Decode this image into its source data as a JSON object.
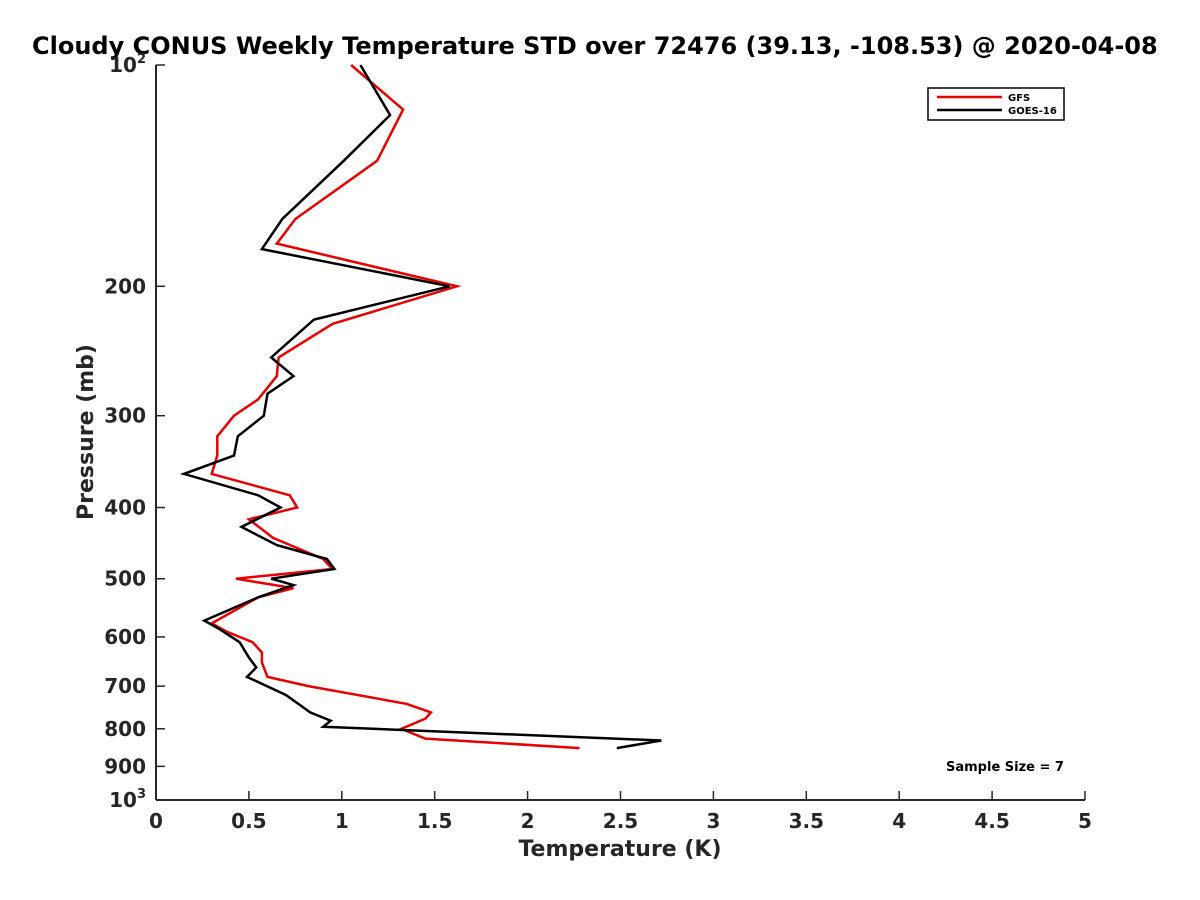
{
  "chart_data": {
    "type": "line",
    "title": "Cloudy CONUS Weekly Temperature STD over 72476 (39.13, -108.53) @ 2020-04-08",
    "xlabel": "Temperature (K)",
    "ylabel": "Pressure (mb)",
    "xlim": [
      0,
      5
    ],
    "ylim": [
      100,
      1000
    ],
    "yscale": "log",
    "y_reversed": true,
    "x_ticks": [
      "0",
      "0.5",
      "1",
      "1.5",
      "2",
      "2.5",
      "3",
      "3.5",
      "4",
      "4.5",
      "5"
    ],
    "y_ticks": [
      {
        "value": 100,
        "base": "10",
        "exp": "2"
      },
      {
        "value": 200,
        "label": "200"
      },
      {
        "value": 300,
        "label": "300"
      },
      {
        "value": 400,
        "label": "400"
      },
      {
        "value": 500,
        "label": "500"
      },
      {
        "value": 600,
        "label": "600"
      },
      {
        "value": 700,
        "label": "700"
      },
      {
        "value": 800,
        "label": "800"
      },
      {
        "value": 900,
        "label": "900"
      },
      {
        "value": 1000,
        "base": "10",
        "exp": "3"
      }
    ],
    "grid": false,
    "legend_position": "top-right",
    "annotation": "Sample Size = 7",
    "series": [
      {
        "name": "GFS",
        "color": "#e60000",
        "points": [
          {
            "x": 1.05,
            "y": 100
          },
          {
            "x": 1.33,
            "y": 115
          },
          {
            "x": 1.19,
            "y": 135
          },
          {
            "x": 0.75,
            "y": 162
          },
          {
            "x": 0.65,
            "y": 175
          },
          {
            "x": 1.62,
            "y": 200
          },
          {
            "x": 0.95,
            "y": 225
          },
          {
            "x": 0.66,
            "y": 250
          },
          {
            "x": 0.65,
            "y": 265
          },
          {
            "x": 0.55,
            "y": 285
          },
          {
            "x": 0.42,
            "y": 300
          },
          {
            "x": 0.33,
            "y": 320
          },
          {
            "x": 0.33,
            "y": 340
          },
          {
            "x": 0.3,
            "y": 360
          },
          {
            "x": 0.72,
            "y": 385
          },
          {
            "x": 0.76,
            "y": 400
          },
          {
            "x": 0.5,
            "y": 415
          },
          {
            "x": 0.63,
            "y": 440
          },
          {
            "x": 0.9,
            "y": 470
          },
          {
            "x": 0.95,
            "y": 485
          },
          {
            "x": 0.43,
            "y": 500
          },
          {
            "x": 0.74,
            "y": 515
          },
          {
            "x": 0.55,
            "y": 530
          },
          {
            "x": 0.3,
            "y": 575
          },
          {
            "x": 0.38,
            "y": 590
          },
          {
            "x": 0.52,
            "y": 610
          },
          {
            "x": 0.57,
            "y": 630
          },
          {
            "x": 0.57,
            "y": 650
          },
          {
            "x": 0.6,
            "y": 680
          },
          {
            "x": 0.82,
            "y": 700
          },
          {
            "x": 1.35,
            "y": 740
          },
          {
            "x": 1.48,
            "y": 760
          },
          {
            "x": 1.45,
            "y": 775
          },
          {
            "x": 1.32,
            "y": 800
          },
          {
            "x": 1.45,
            "y": 825
          },
          {
            "x": 2.28,
            "y": 850
          }
        ]
      },
      {
        "name": "GOES-16",
        "color": "#000000",
        "points": [
          {
            "x": 1.1,
            "y": 100
          },
          {
            "x": 1.26,
            "y": 117
          },
          {
            "x": 1.01,
            "y": 135
          },
          {
            "x": 0.68,
            "y": 162
          },
          {
            "x": 0.57,
            "y": 178
          },
          {
            "x": 1.58,
            "y": 200
          },
          {
            "x": 0.85,
            "y": 222
          },
          {
            "x": 0.62,
            "y": 250
          },
          {
            "x": 0.74,
            "y": 265
          },
          {
            "x": 0.6,
            "y": 280
          },
          {
            "x": 0.58,
            "y": 300
          },
          {
            "x": 0.44,
            "y": 320
          },
          {
            "x": 0.42,
            "y": 340
          },
          {
            "x": 0.15,
            "y": 360
          },
          {
            "x": 0.55,
            "y": 385
          },
          {
            "x": 0.67,
            "y": 400
          },
          {
            "x": 0.46,
            "y": 425
          },
          {
            "x": 0.65,
            "y": 450
          },
          {
            "x": 0.92,
            "y": 470
          },
          {
            "x": 0.96,
            "y": 485
          },
          {
            "x": 0.62,
            "y": 500
          },
          {
            "x": 0.74,
            "y": 510
          },
          {
            "x": 0.55,
            "y": 530
          },
          {
            "x": 0.26,
            "y": 570
          },
          {
            "x": 0.34,
            "y": 585
          },
          {
            "x": 0.45,
            "y": 610
          },
          {
            "x": 0.5,
            "y": 640
          },
          {
            "x": 0.54,
            "y": 660
          },
          {
            "x": 0.49,
            "y": 680
          },
          {
            "x": 0.7,
            "y": 720
          },
          {
            "x": 0.83,
            "y": 760
          },
          {
            "x": 0.94,
            "y": 780
          },
          {
            "x": 0.9,
            "y": 795
          },
          {
            "x": 2.72,
            "y": 830
          },
          {
            "x": 2.48,
            "y": 850
          }
        ]
      }
    ]
  }
}
